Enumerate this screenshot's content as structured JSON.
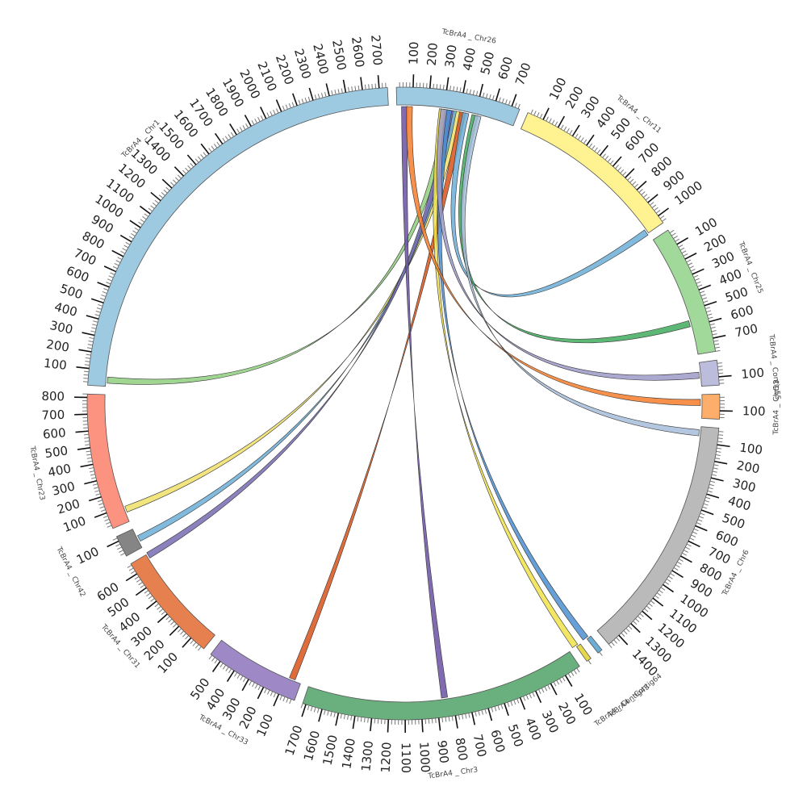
{
  "chart_data": {
    "type": "chord",
    "tick_step": 100,
    "tick_minor_step": 20,
    "tick_color": "#111111",
    "minor_tick_color": "#777777",
    "chromosomes": [
      {
        "id": "chr26",
        "label": "TcBrA4 _ Chr26",
        "length": 750,
        "color": "#9ecae1",
        "ticks": [
          "100",
          "200",
          "300",
          "400",
          "500",
          "600",
          "700"
        ]
      },
      {
        "id": "chr11",
        "label": "TcBrA4 _ Chr11",
        "length": 1050,
        "color": "#fff391",
        "ticks": [
          "100",
          "200",
          "300",
          "400",
          "500",
          "600",
          "700",
          "800",
          "900",
          "1000"
        ]
      },
      {
        "id": "chr25",
        "label": "TcBrA4 _ Chr25",
        "length": 780,
        "color": "#a1d99b",
        "ticks": [
          "100",
          "200",
          "300",
          "400",
          "500",
          "600",
          "700"
        ]
      },
      {
        "id": "contig55",
        "label": "TcBrA4 _ Contig55",
        "length": 150,
        "color": "#bcbddc",
        "ticks": [
          "100"
        ]
      },
      {
        "id": "chr13",
        "label": "TcBrA4 _ Chr13",
        "length": 150,
        "color": "#fdae6b",
        "ticks": [
          "100"
        ]
      },
      {
        "id": "chr6",
        "label": "TcBrA4 _ Chr6",
        "length": 1480,
        "color": "#bababa",
        "ticks": [
          "100",
          "200",
          "300",
          "400",
          "500",
          "600",
          "700",
          "800",
          "900",
          "1000",
          "1100",
          "1200",
          "1300",
          "1400"
        ]
      },
      {
        "id": "contig64",
        "label": "TcBrA4 _ Contig64",
        "length": 30,
        "color": "#6baed6",
        "ticks": []
      },
      {
        "id": "contig43",
        "label": "TcBrA4 _ Contig43",
        "length": 30,
        "color": "#e6d84c",
        "ticks": []
      },
      {
        "id": "chr3",
        "label": "TcBrA4 _ Chr3",
        "length": 1720,
        "color": "#6ab07e",
        "ticks": [
          "100",
          "200",
          "300",
          "400",
          "500",
          "600",
          "700",
          "800",
          "900",
          "1000",
          "1100",
          "1200",
          "1300",
          "1400",
          "1500",
          "1600",
          "1700"
        ]
      },
      {
        "id": "chr33",
        "label": "TcBrA4 _ Chr33",
        "length": 570,
        "color": "#9e89c6",
        "ticks": [
          "100",
          "200",
          "300",
          "400",
          "500"
        ]
      },
      {
        "id": "chr31",
        "label": "TcBrA4 _ Chr31",
        "length": 670,
        "color": "#e6804f",
        "ticks": [
          "100",
          "200",
          "300",
          "400",
          "500",
          "600"
        ]
      },
      {
        "id": "chr42",
        "label": "TcBrA4 _ Chr42",
        "length": 130,
        "color": "#858585",
        "ticks": [
          "100"
        ]
      },
      {
        "id": "chr23",
        "label": "TcBrA4 _ Chr23",
        "length": 820,
        "color": "#fc9280",
        "ticks": [
          "100",
          "200",
          "300",
          "400",
          "500",
          "600",
          "700",
          "800"
        ]
      },
      {
        "id": "chr1",
        "label": "TcBrA4 _ Chr1",
        "length": 2750,
        "color": "#9ecae1",
        "ticks": [
          "100",
          "200",
          "300",
          "400",
          "500",
          "600",
          "700",
          "800",
          "900",
          "1000",
          "1100",
          "1200",
          "1300",
          "1400",
          "1500",
          "1600",
          "1700",
          "1800",
          "1900",
          "2000",
          "2100",
          "2200",
          "2300",
          "2400",
          "2500",
          "2600",
          "2700"
        ]
      }
    ],
    "links": [
      {
        "a": {
          "chr": "chr26",
          "pos": 300
        },
        "b": {
          "chr": "chr1",
          "pos": 20
        },
        "color": "#8fcf7f"
      },
      {
        "a": {
          "chr": "chr26",
          "pos": 370
        },
        "b": {
          "chr": "chr23",
          "pos": 60
        },
        "color": "#f0e06a"
      },
      {
        "a": {
          "chr": "chr26",
          "pos": 340
        },
        "b": {
          "chr": "chr42",
          "pos": 40
        },
        "color": "#6baed6"
      },
      {
        "a": {
          "chr": "chr26",
          "pos": 320
        },
        "b": {
          "chr": "chr31",
          "pos": 640
        },
        "color": "#756bb1"
      },
      {
        "a": {
          "chr": "chr26",
          "pos": 400
        },
        "b": {
          "chr": "chr33",
          "pos": 40
        },
        "color": "#d9541a"
      },
      {
        "a": {
          "chr": "chr26",
          "pos": 30
        },
        "b": {
          "chr": "chr3",
          "pos": 830
        },
        "color": "#6a51a3"
      },
      {
        "a": {
          "chr": "chr26",
          "pos": 270
        },
        "b": {
          "chr": "contig43",
          "pos": 15
        },
        "color": "#f2e24a"
      },
      {
        "a": {
          "chr": "chr26",
          "pos": 310
        },
        "b": {
          "chr": "contig64",
          "pos": 15
        },
        "color": "#4c8ed0"
      },
      {
        "a": {
          "chr": "chr26",
          "pos": 420
        },
        "b": {
          "chr": "chr11",
          "pos": 1020
        },
        "color": "#6baed6"
      },
      {
        "a": {
          "chr": "chr26",
          "pos": 480
        },
        "b": {
          "chr": "chr25",
          "pos": 560
        },
        "color": "#41ab5d"
      },
      {
        "a": {
          "chr": "chr26",
          "pos": 280
        },
        "b": {
          "chr": "contig55",
          "pos": 60
        },
        "color": "#9e9ac8"
      },
      {
        "a": {
          "chr": "chr26",
          "pos": 60
        },
        "b": {
          "chr": "chr13",
          "pos": 30
        },
        "color": "#f57c2a"
      },
      {
        "a": {
          "chr": "chr26",
          "pos": 500
        },
        "b": {
          "chr": "chr6",
          "pos": 20
        },
        "color": "#a6bddb"
      }
    ]
  }
}
